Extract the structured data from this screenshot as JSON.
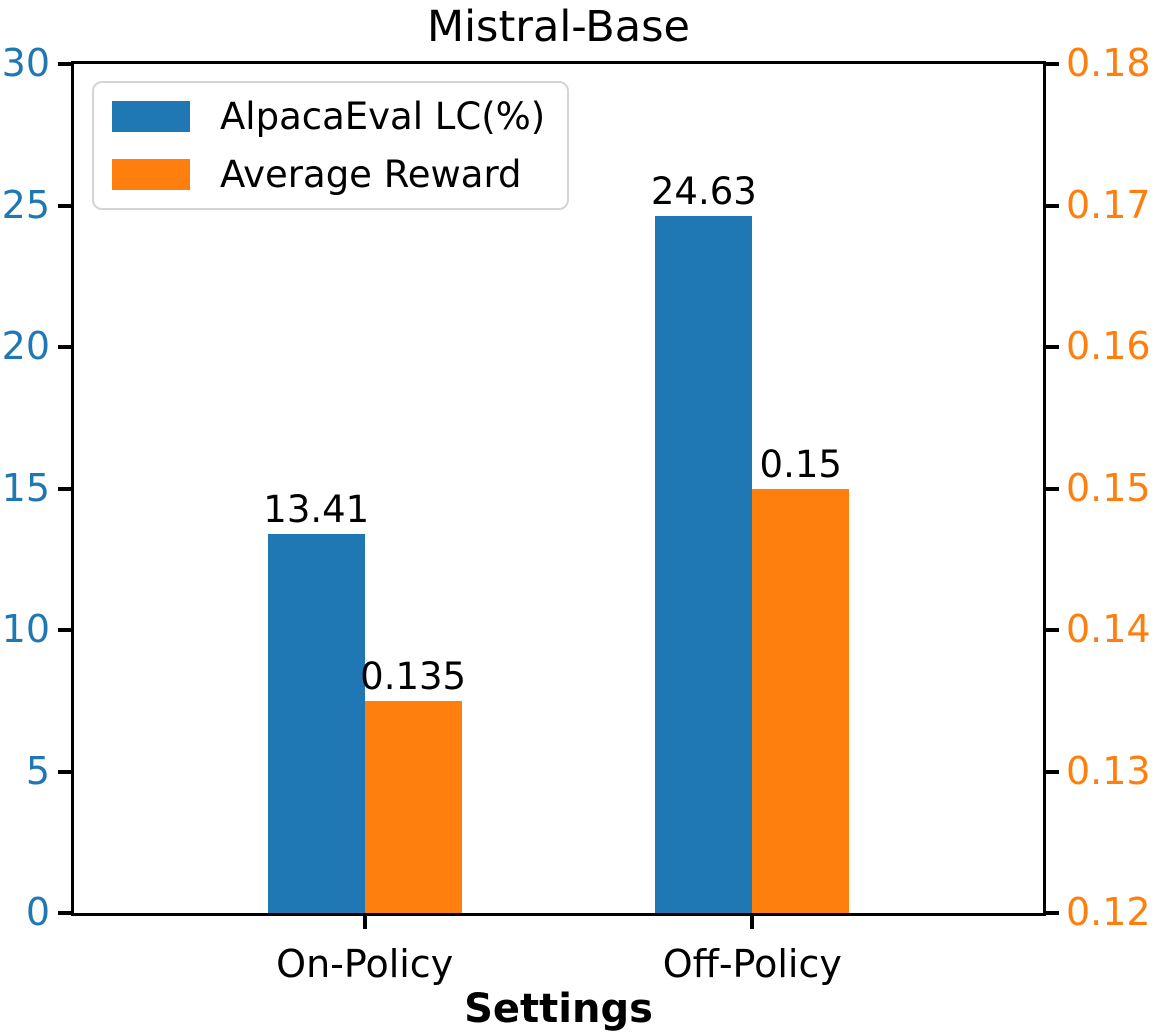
{
  "chart_data": {
    "type": "bar",
    "title": "Mistral-Base",
    "xlabel": "Settings",
    "categories": [
      "On-Policy",
      "Off-Policy"
    ],
    "positions": [
      0,
      1
    ],
    "xlim": [
      -0.75,
      1.75
    ],
    "bar_width": 0.25,
    "grid": false,
    "legend_position": "upper-left",
    "series": [
      {
        "name": "AlpacaEval LC(%)",
        "axis": "left",
        "color": "#1f77b4",
        "values": [
          13.41,
          24.63
        ],
        "value_labels": [
          "13.41",
          "24.63"
        ]
      },
      {
        "name": "Average Reward",
        "axis": "right",
        "color": "#ff7f0e",
        "values": [
          0.135,
          0.15
        ],
        "value_labels": [
          "0.135",
          "0.15"
        ]
      }
    ],
    "left_axis": {
      "label_color": "#1f77b4",
      "min": 0,
      "max": 30,
      "ticks": [
        0,
        5,
        10,
        15,
        20,
        25,
        30
      ],
      "tick_labels": [
        "0",
        "5",
        "10",
        "15",
        "20",
        "25",
        "30"
      ]
    },
    "right_axis": {
      "label_color": "#ff7f0e",
      "min": 0.12,
      "max": 0.18,
      "ticks": [
        0.12,
        0.13,
        0.14,
        0.15,
        0.16,
        0.17,
        0.18
      ],
      "tick_labels": [
        "0.12",
        "0.13",
        "0.14",
        "0.15",
        "0.16",
        "0.17",
        "0.18"
      ]
    }
  }
}
